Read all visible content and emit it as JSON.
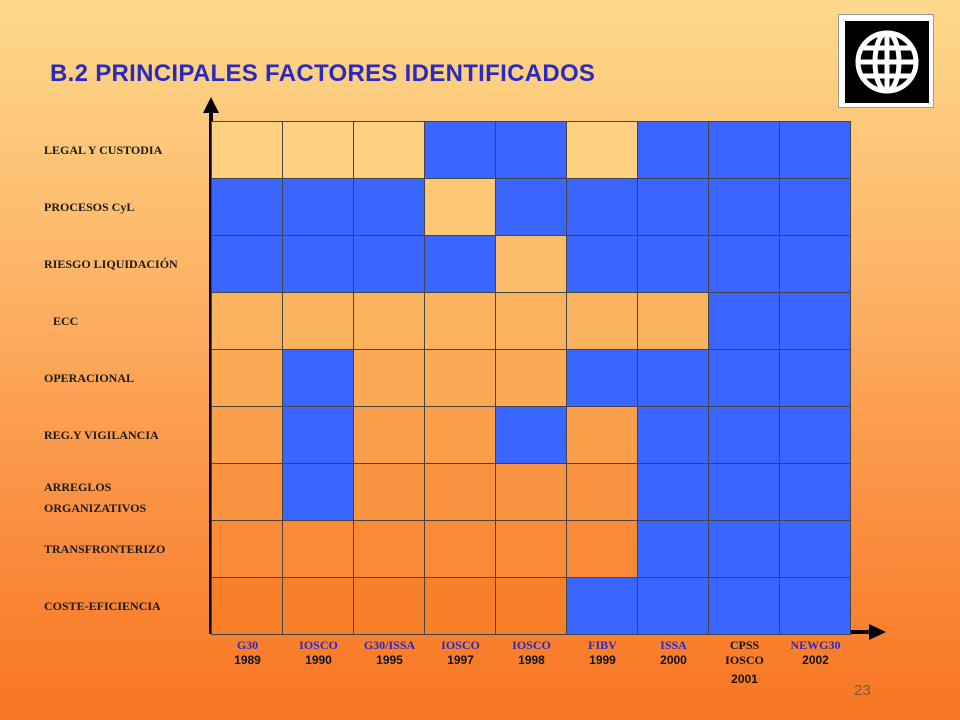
{
  "slide": {
    "title": "B.2 PRINCIPALES FACTORES IDENTIFICADOS",
    "page_number": "23",
    "logo_icon": "globe-logo-icon"
  },
  "colors": {
    "yes": "#3a66ff",
    "no_top": "#fdd17f",
    "no_bottom": "#f9802b",
    "title": "#2a2abf"
  },
  "rows": [
    {
      "label": "LEGAL Y CUSTODIA",
      "cells": [
        0,
        0,
        0,
        1,
        1,
        0,
        1,
        1,
        1
      ]
    },
    {
      "label": "PROCESOS CyL",
      "cells": [
        1,
        1,
        1,
        0,
        1,
        1,
        1,
        1,
        1
      ]
    },
    {
      "label": "RIESGO LIQUIDACIÓN",
      "cells": [
        1,
        1,
        1,
        1,
        0,
        1,
        1,
        1,
        1
      ]
    },
    {
      "label": "ECC",
      "cells": [
        0,
        0,
        0,
        0,
        0,
        0,
        0,
        1,
        1
      ]
    },
    {
      "label": "OPERACIONAL",
      "cells": [
        0,
        1,
        0,
        0,
        0,
        1,
        1,
        1,
        1
      ]
    },
    {
      "label": "REG.Y VIGILANCIA",
      "cells": [
        0,
        1,
        0,
        0,
        1,
        0,
        1,
        1,
        1
      ]
    },
    {
      "label": "ARREGLOS",
      "label2": "ORGANIZATIVOS",
      "cells": [
        0,
        1,
        0,
        0,
        0,
        0,
        1,
        1,
        1
      ]
    },
    {
      "label": "TRANSFRONTERIZO",
      "cells": [
        0,
        0,
        0,
        0,
        0,
        0,
        1,
        1,
        1
      ]
    },
    {
      "label": "COSTE-EFICIENCIA",
      "cells": [
        0,
        0,
        0,
        0,
        0,
        1,
        1,
        1,
        1
      ]
    }
  ],
  "columns": [
    {
      "name": "G30",
      "year": "1989"
    },
    {
      "name": "IOSCO",
      "year": "1990"
    },
    {
      "name": "G30/ISSA",
      "year": "1995"
    },
    {
      "name": "IOSCO",
      "year": "1997"
    },
    {
      "name": "IOSCO",
      "year": "1998"
    },
    {
      "name": "FIBV",
      "year": "1999"
    },
    {
      "name": "ISSA",
      "year": "2000"
    },
    {
      "name": "CPSS",
      "name2": "IOSCO",
      "year": "2001"
    },
    {
      "name": "NEWG30",
      "year": "2002"
    }
  ]
}
